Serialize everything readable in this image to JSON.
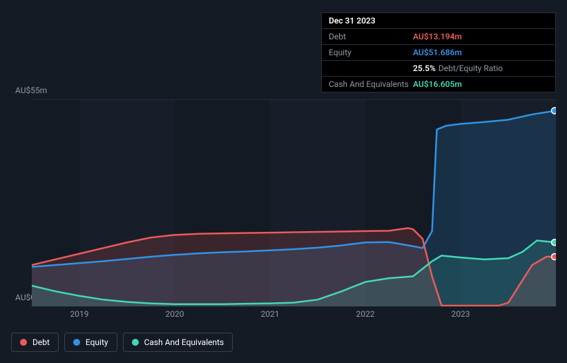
{
  "tooltip": {
    "date": "Dec 31 2023",
    "rows": [
      {
        "label": "Debt",
        "value": "AU$13.194m",
        "color": "#eb5b5b"
      },
      {
        "label": "Equity",
        "value": "AU$51.686m",
        "color": "#2f94e6"
      },
      {
        "label": "",
        "ratio_pct": "25.5%",
        "ratio_label": "Debt/Equity Ratio"
      },
      {
        "label": "Cash And Equivalents",
        "value": "AU$16.605m",
        "color": "#44d7b6"
      }
    ]
  },
  "chart": {
    "type": "area",
    "background_color": "#151b24",
    "plot_bg_even": "#171e29",
    "plot_bg_odd": "#141a23",
    "grid_color": "#252c38",
    "axis_label_color": "#9299a5",
    "axis_label_fontsize": 12,
    "y_axis": {
      "min": 0,
      "max": 55,
      "labels": [
        {
          "text": "AU$55m",
          "value": 55
        },
        {
          "text": "AU$0",
          "value": 0
        }
      ]
    },
    "x_axis": {
      "min": 2018.5,
      "max": 2024.0,
      "ticks": [
        2019,
        2020,
        2021,
        2022,
        2023
      ],
      "tick_labels": [
        "2019",
        "2020",
        "2021",
        "2022",
        "2023"
      ]
    },
    "series": [
      {
        "name": "Equity",
        "color": "#2f94e6",
        "fill_opacity": 0.18,
        "line_width": 2.5,
        "marker": true,
        "data": [
          [
            2018.5,
            10.5
          ],
          [
            2018.75,
            11.0
          ],
          [
            2019.0,
            11.5
          ],
          [
            2019.25,
            12.0
          ],
          [
            2019.5,
            12.6
          ],
          [
            2019.75,
            13.2
          ],
          [
            2020.0,
            13.7
          ],
          [
            2020.25,
            14.1
          ],
          [
            2020.5,
            14.4
          ],
          [
            2020.75,
            14.6
          ],
          [
            2021.0,
            14.9
          ],
          [
            2021.25,
            15.2
          ],
          [
            2021.5,
            15.6
          ],
          [
            2021.75,
            16.2
          ],
          [
            2022.0,
            17.0
          ],
          [
            2022.25,
            17.1
          ],
          [
            2022.5,
            16.0
          ],
          [
            2022.6,
            15.5
          ],
          [
            2022.7,
            20.0
          ],
          [
            2022.75,
            47.0
          ],
          [
            2022.85,
            48.0
          ],
          [
            2023.0,
            48.5
          ],
          [
            2023.25,
            49.0
          ],
          [
            2023.5,
            49.6
          ],
          [
            2023.75,
            51.0
          ],
          [
            2024.0,
            52.0
          ]
        ]
      },
      {
        "name": "Debt",
        "color": "#eb5b5b",
        "fill_opacity": 0.18,
        "line_width": 2.5,
        "marker": true,
        "data": [
          [
            2018.5,
            11.0
          ],
          [
            2018.75,
            12.5
          ],
          [
            2019.0,
            14.0
          ],
          [
            2019.25,
            15.5
          ],
          [
            2019.5,
            17.0
          ],
          [
            2019.75,
            18.3
          ],
          [
            2020.0,
            19.0
          ],
          [
            2020.25,
            19.3
          ],
          [
            2020.5,
            19.4
          ],
          [
            2020.75,
            19.5
          ],
          [
            2021.0,
            19.6
          ],
          [
            2021.25,
            19.7
          ],
          [
            2021.5,
            19.8
          ],
          [
            2021.75,
            19.9
          ],
          [
            2022.0,
            20.0
          ],
          [
            2022.25,
            20.1
          ],
          [
            2022.45,
            20.8
          ],
          [
            2022.5,
            20.5
          ],
          [
            2022.6,
            18.0
          ],
          [
            2022.7,
            8.0
          ],
          [
            2022.8,
            0.2
          ],
          [
            2023.0,
            0.2
          ],
          [
            2023.25,
            0.2
          ],
          [
            2023.4,
            0.2
          ],
          [
            2023.5,
            1.0
          ],
          [
            2023.6,
            5.0
          ],
          [
            2023.75,
            11.0
          ],
          [
            2023.9,
            13.2
          ],
          [
            2024.0,
            13.2
          ]
        ]
      },
      {
        "name": "Cash And Equivalents",
        "color": "#44d7b6",
        "fill_opacity": 0.15,
        "line_width": 2.5,
        "marker": true,
        "data": [
          [
            2018.5,
            5.5
          ],
          [
            2018.75,
            4.0
          ],
          [
            2019.0,
            2.8
          ],
          [
            2019.25,
            1.8
          ],
          [
            2019.5,
            1.2
          ],
          [
            2019.75,
            0.8
          ],
          [
            2020.0,
            0.6
          ],
          [
            2020.25,
            0.6
          ],
          [
            2020.5,
            0.6
          ],
          [
            2020.75,
            0.7
          ],
          [
            2021.0,
            0.8
          ],
          [
            2021.25,
            1.0
          ],
          [
            2021.5,
            1.8
          ],
          [
            2021.75,
            4.0
          ],
          [
            2022.0,
            6.5
          ],
          [
            2022.25,
            7.5
          ],
          [
            2022.5,
            8.0
          ],
          [
            2022.7,
            12.0
          ],
          [
            2022.8,
            13.5
          ],
          [
            2023.0,
            13.0
          ],
          [
            2023.25,
            12.5
          ],
          [
            2023.5,
            12.8
          ],
          [
            2023.65,
            14.5
          ],
          [
            2023.8,
            17.5
          ],
          [
            2024.0,
            17.0
          ]
        ]
      }
    ]
  },
  "legend": {
    "items": [
      {
        "label": "Debt",
        "color": "#eb5b5b"
      },
      {
        "label": "Equity",
        "color": "#2f94e6"
      },
      {
        "label": "Cash And Equivalents",
        "color": "#44d7b6"
      }
    ]
  }
}
